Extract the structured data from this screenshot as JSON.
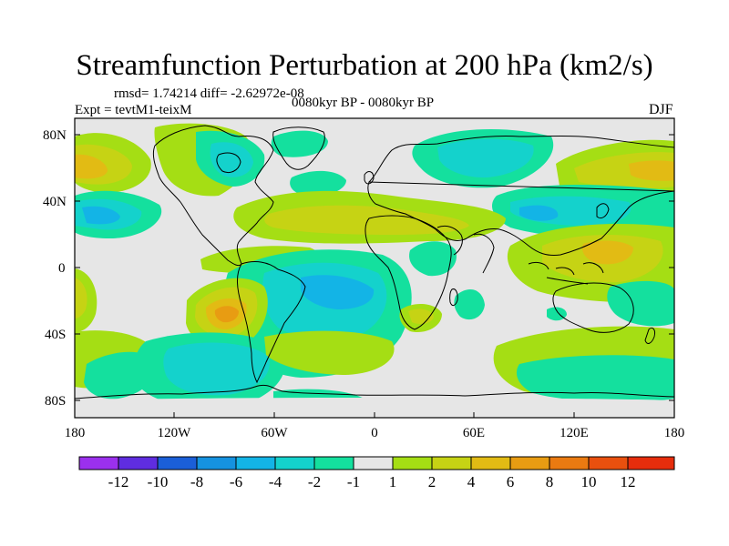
{
  "title": "Streamfunction Perturbation at 200 hPa (km2/s)",
  "stats_line": "rmsd= 1.74214 diff= -2.62972e-08",
  "experiment_line": "Expt = tevtM1-teixM",
  "period_line": "0080kyr BP - 0080kyr BP",
  "season": "DJF",
  "map": {
    "projection": "cylindrical equidistant",
    "lon_range": [
      -180,
      180
    ],
    "lat_range": [
      -90,
      90
    ],
    "lat_ticks": [
      "80N",
      "40N",
      "0",
      "40S",
      "80S"
    ],
    "lon_ticks": [
      "180",
      "120W",
      "60W",
      "0",
      "60E",
      "120E",
      "180"
    ],
    "background_color": "#e6e6e6",
    "coastline_color": "#000000"
  },
  "colorbar": {
    "labels": [
      "-12",
      "-10",
      "-8",
      "-6",
      "-4",
      "-2",
      "-1",
      "1",
      "2",
      "4",
      "6",
      "8",
      "10",
      "12"
    ],
    "colors": [
      "#9b30ee",
      "#5f2de0",
      "#1b5fd8",
      "#1592e0",
      "#13b4e6",
      "#14d2cc",
      "#14e09e",
      "#e6e6e6",
      "#a5de14",
      "#c6d314",
      "#e2bb14",
      "#e89c12",
      "#ea7a11",
      "#e9500e",
      "#e62d0c"
    ]
  },
  "anomaly_regions": [
    {
      "name": "North Pacific west high",
      "level": "6"
    },
    {
      "name": "North Pacific east high",
      "level": "4"
    },
    {
      "name": "North Pacific low",
      "level": "-4"
    },
    {
      "name": "Canada positive",
      "level": "2"
    },
    {
      "name": "Hudson Bay low",
      "level": "-4"
    },
    {
      "name": "Greenland low",
      "level": "-2"
    },
    {
      "name": "Western Atlantic low",
      "level": "-2"
    },
    {
      "name": "Mid-latitude Atlantic band high",
      "level": "4"
    },
    {
      "name": "Arctic Eurasia low",
      "level": "-4"
    },
    {
      "name": "Central Asia low",
      "level": "-4"
    },
    {
      "name": "Siberia-Pacific high",
      "level": "6"
    },
    {
      "name": "Maritime Continent high",
      "level": "6"
    },
    {
      "name": "Tropical Atlantic-South America low",
      "level": "-6"
    },
    {
      "name": "South Atlantic high",
      "level": "4"
    },
    {
      "name": "South Pacific high",
      "level": "8"
    },
    {
      "name": "Southern Ocean low",
      "level": "-4"
    },
    {
      "name": "Southern Indian Ocean high",
      "level": "4"
    }
  ]
}
